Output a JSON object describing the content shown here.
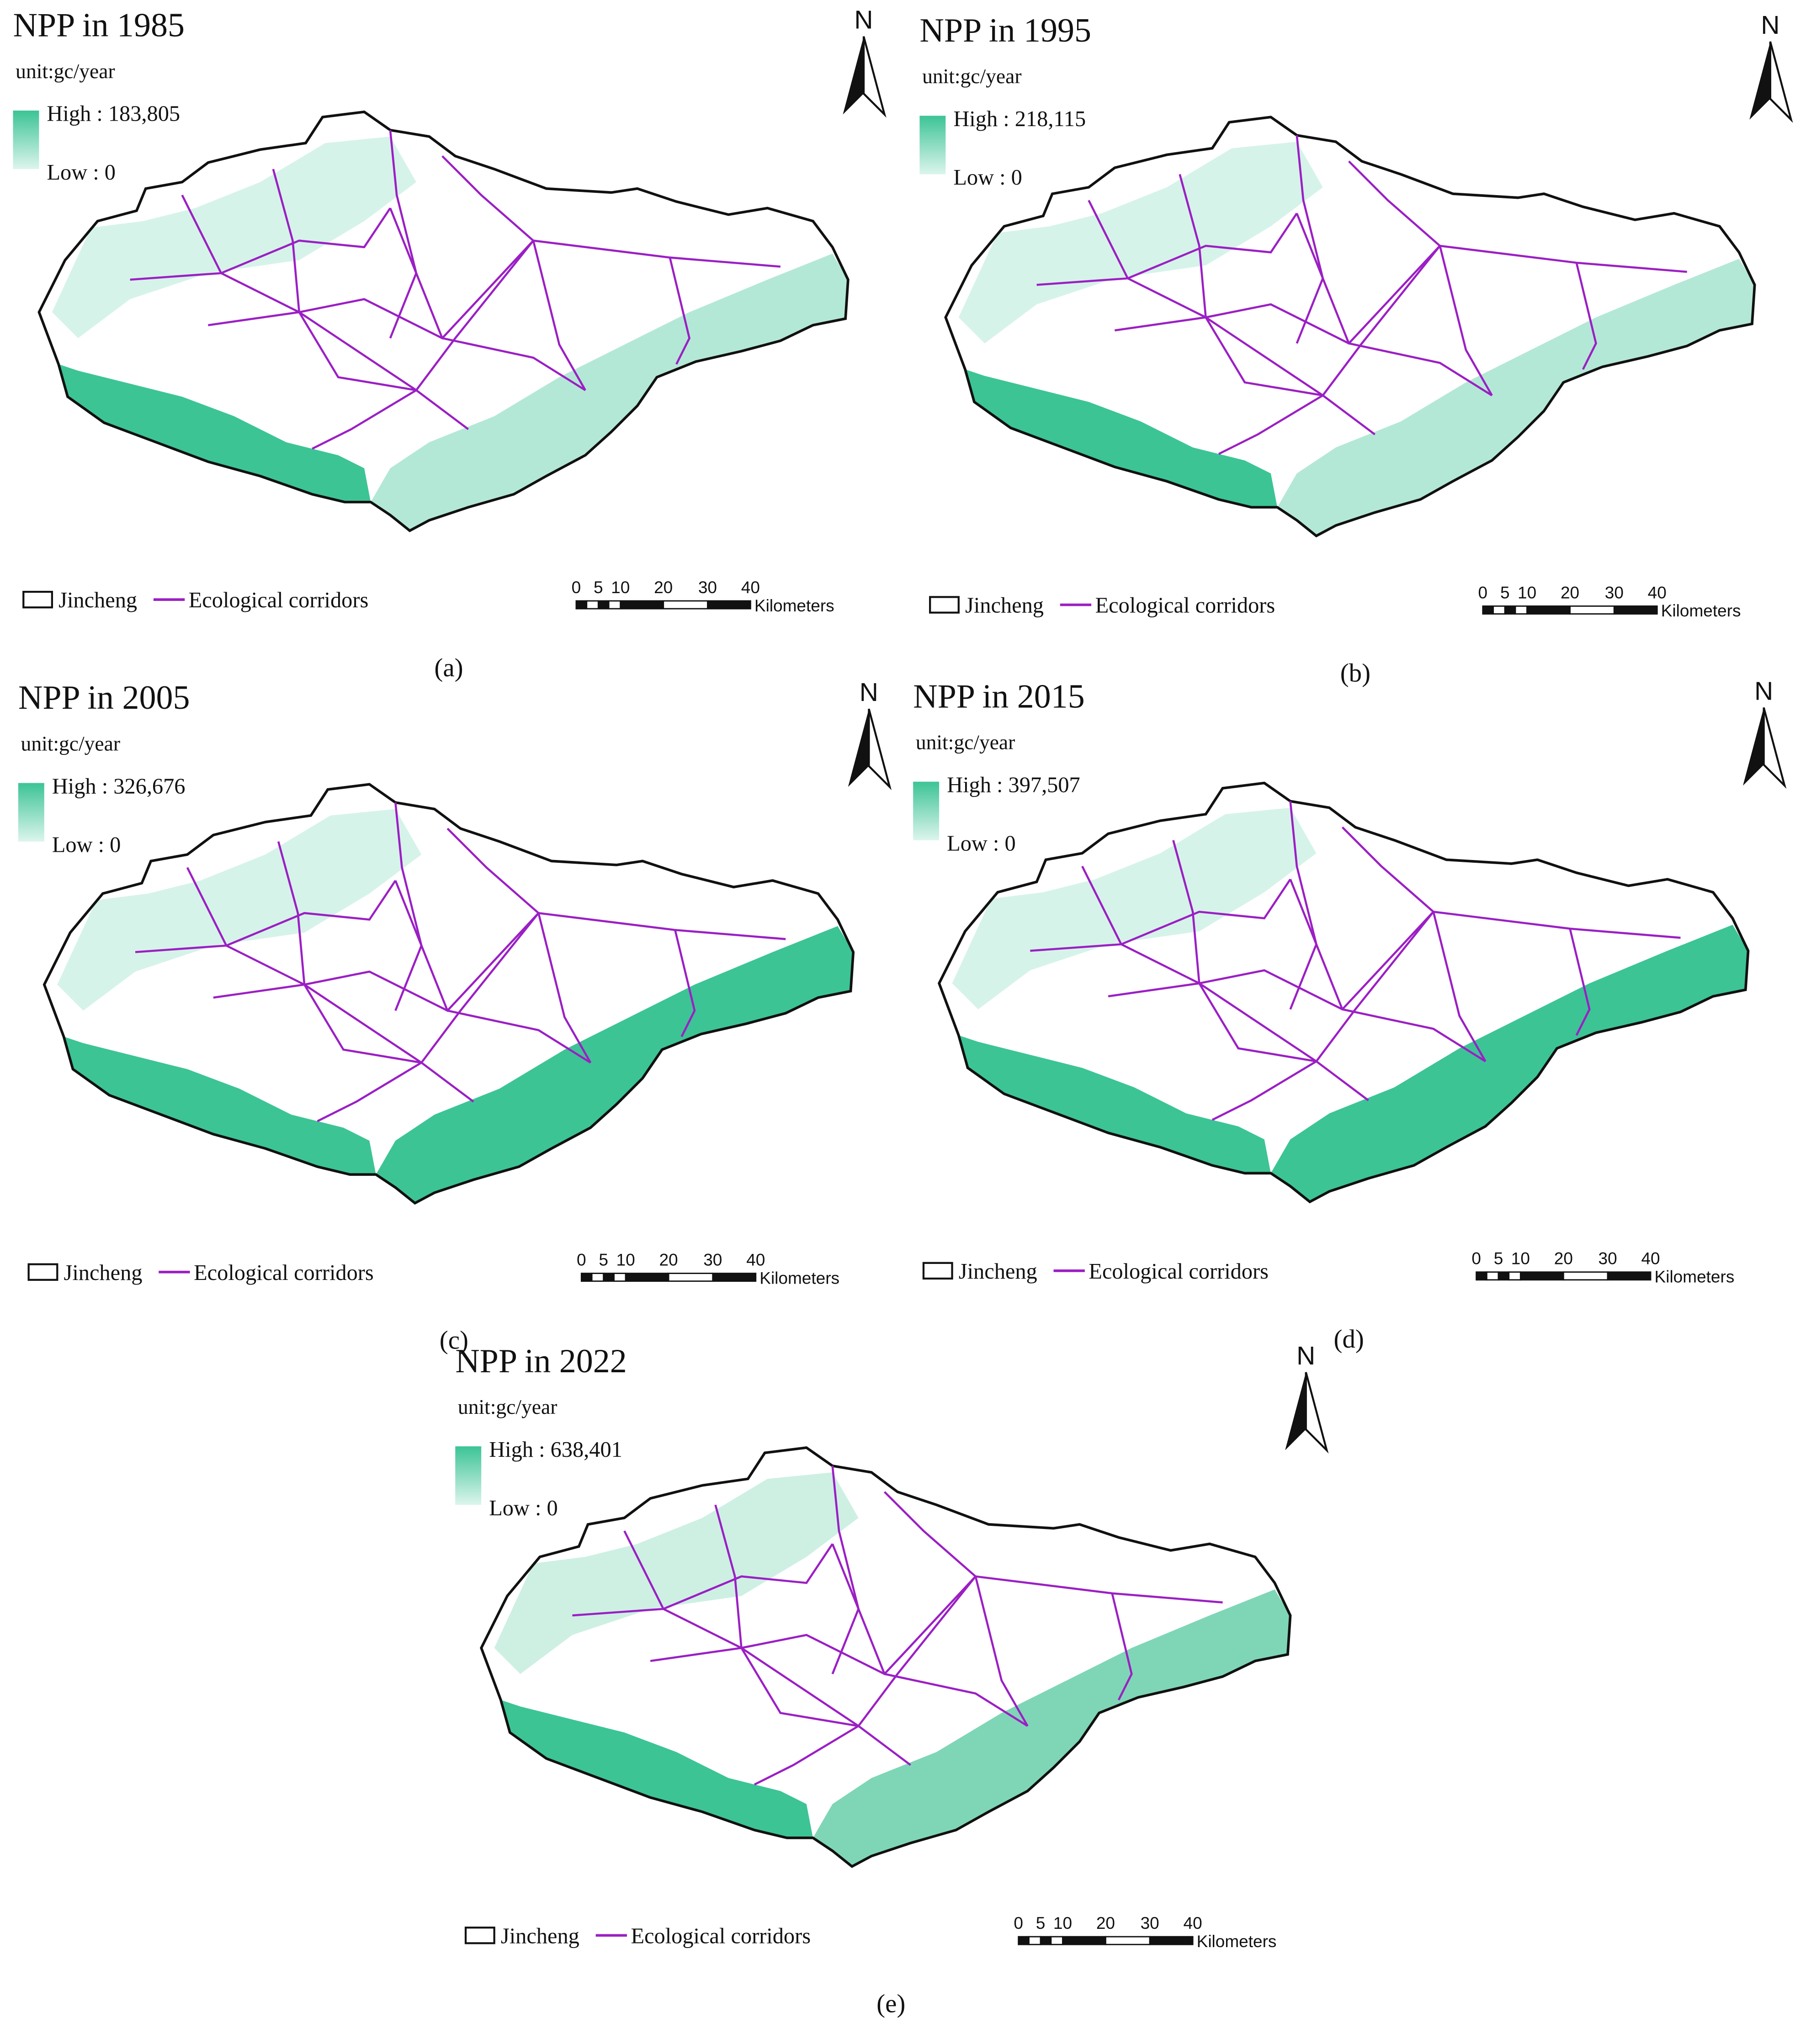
{
  "panels": [
    {
      "title": "NPP in 1985",
      "unit": "unit:gc/year",
      "high": "High : 183,805",
      "low": "Low : 0",
      "north": "N",
      "legend": [
        "Jincheng",
        "Ecological corridors"
      ],
      "scale_labels": [
        "0",
        "5",
        "10",
        "20",
        "30",
        "40"
      ],
      "scale_unit": "Kilometers",
      "caption": "(a)"
    },
    {
      "title": "NPP in 1995",
      "unit": "unit:gc/year",
      "high": "High : 218,115",
      "low": "Low : 0",
      "north": "N",
      "legend": [
        "Jincheng",
        "Ecological corridors"
      ],
      "scale_labels": [
        "0",
        "5",
        "10",
        "20",
        "30",
        "40"
      ],
      "scale_unit": "Kilometers",
      "caption": "(b)"
    },
    {
      "title": "NPP in 2005",
      "unit": "unit:gc/year",
      "high": "High : 326,676",
      "low": "Low : 0",
      "north": "N",
      "legend": [
        "Jincheng",
        "Ecological corridors"
      ],
      "scale_labels": [
        "0",
        "5",
        "10",
        "20",
        "30",
        "40"
      ],
      "scale_unit": "Kilometers",
      "caption": "(c)"
    },
    {
      "title": "NPP in 2015",
      "unit": "unit:gc/year",
      "high": "High : 397,507",
      "low": "Low : 0",
      "north": "N",
      "legend": [
        "Jincheng",
        "Ecological corridors"
      ],
      "scale_labels": [
        "0",
        "5",
        "10",
        "20",
        "30",
        "40"
      ],
      "scale_unit": "Kilometers",
      "caption": "(d)"
    },
    {
      "title": "NPP in 2022",
      "unit": "unit:gc/year",
      "high": "High : 638,401",
      "low": "Low : 0",
      "north": "N",
      "legend": [
        "Jincheng",
        "Ecological corridors"
      ],
      "scale_labels": [
        "0",
        "5",
        "10",
        "20",
        "30",
        "40"
      ],
      "scale_unit": "Kilometers",
      "caption": "(e)"
    }
  ]
}
